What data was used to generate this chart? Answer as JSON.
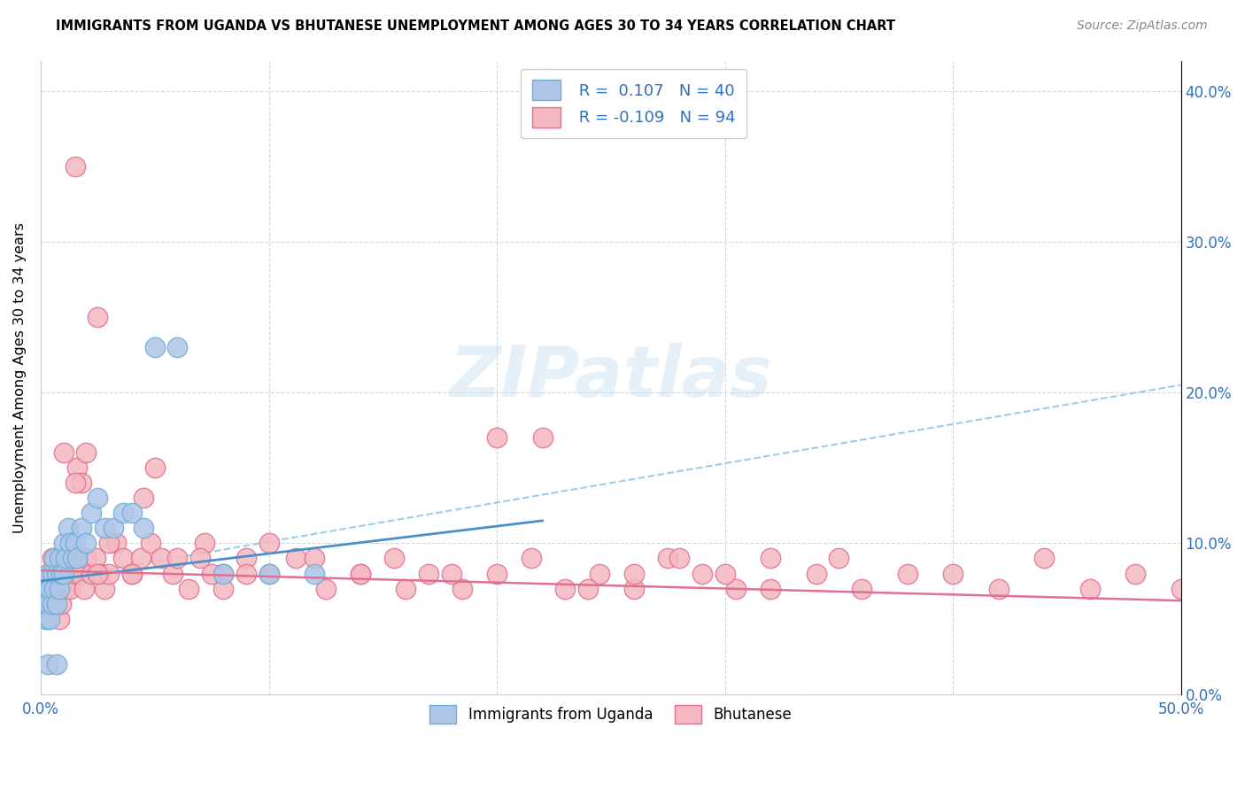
{
  "title": "IMMIGRANTS FROM UGANDA VS BHUTANESE UNEMPLOYMENT AMONG AGES 30 TO 34 YEARS CORRELATION CHART",
  "source": "Source: ZipAtlas.com",
  "ylabel": "Unemployment Among Ages 30 to 34 years",
  "xlim": [
    0.0,
    0.5
  ],
  "ylim": [
    0.0,
    0.42
  ],
  "uganda_color": "#aec6e8",
  "bhutan_color": "#f4b8c1",
  "uganda_edge_color": "#6baed6",
  "bhutan_edge_color": "#e07090",
  "uganda_R": 0.107,
  "uganda_N": 40,
  "bhutan_R": -0.109,
  "bhutan_N": 94,
  "legend_color": "#3070b8",
  "trendline_uganda_color": "#4a90c8",
  "trendline_bhutan_color": "#e07090",
  "trendline_dash_color": "#90c8e8",
  "watermark": "ZIPatlas",
  "uganda_x": [
    0.001,
    0.002,
    0.002,
    0.003,
    0.003,
    0.004,
    0.004,
    0.005,
    0.005,
    0.006,
    0.006,
    0.007,
    0.007,
    0.008,
    0.008,
    0.009,
    0.01,
    0.01,
    0.011,
    0.012,
    0.013,
    0.014,
    0.015,
    0.016,
    0.018,
    0.02,
    0.022,
    0.025,
    0.028,
    0.032,
    0.036,
    0.04,
    0.045,
    0.05,
    0.06,
    0.08,
    0.1,
    0.12,
    0.003,
    0.007
  ],
  "uganda_y": [
    0.07,
    0.06,
    0.05,
    0.08,
    0.06,
    0.07,
    0.05,
    0.08,
    0.06,
    0.09,
    0.07,
    0.08,
    0.06,
    0.09,
    0.07,
    0.08,
    0.1,
    0.08,
    0.09,
    0.11,
    0.1,
    0.09,
    0.1,
    0.09,
    0.11,
    0.1,
    0.12,
    0.13,
    0.11,
    0.11,
    0.12,
    0.12,
    0.11,
    0.23,
    0.23,
    0.08,
    0.08,
    0.08,
    0.02,
    0.02
  ],
  "bhutan_x": [
    0.001,
    0.002,
    0.003,
    0.003,
    0.004,
    0.005,
    0.005,
    0.006,
    0.007,
    0.007,
    0.008,
    0.008,
    0.009,
    0.01,
    0.01,
    0.011,
    0.012,
    0.013,
    0.014,
    0.015,
    0.016,
    0.017,
    0.018,
    0.019,
    0.02,
    0.022,
    0.024,
    0.026,
    0.028,
    0.03,
    0.033,
    0.036,
    0.04,
    0.044,
    0.048,
    0.053,
    0.058,
    0.065,
    0.072,
    0.08,
    0.09,
    0.1,
    0.112,
    0.125,
    0.14,
    0.155,
    0.17,
    0.185,
    0.2,
    0.215,
    0.23,
    0.245,
    0.26,
    0.275,
    0.29,
    0.305,
    0.32,
    0.34,
    0.36,
    0.38,
    0.4,
    0.42,
    0.44,
    0.46,
    0.48,
    0.5,
    0.01,
    0.015,
    0.02,
    0.025,
    0.03,
    0.04,
    0.05,
    0.06,
    0.07,
    0.08,
    0.09,
    0.1,
    0.12,
    0.14,
    0.16,
    0.18,
    0.2,
    0.22,
    0.24,
    0.26,
    0.28,
    0.3,
    0.32,
    0.35,
    0.015,
    0.025,
    0.045,
    0.075
  ],
  "bhutan_y": [
    0.06,
    0.07,
    0.05,
    0.08,
    0.06,
    0.07,
    0.09,
    0.06,
    0.07,
    0.08,
    0.05,
    0.07,
    0.06,
    0.08,
    0.09,
    0.07,
    0.08,
    0.07,
    0.09,
    0.08,
    0.15,
    0.08,
    0.14,
    0.07,
    0.09,
    0.08,
    0.09,
    0.08,
    0.07,
    0.08,
    0.1,
    0.09,
    0.08,
    0.09,
    0.1,
    0.09,
    0.08,
    0.07,
    0.1,
    0.08,
    0.09,
    0.08,
    0.09,
    0.07,
    0.08,
    0.09,
    0.08,
    0.07,
    0.08,
    0.09,
    0.07,
    0.08,
    0.07,
    0.09,
    0.08,
    0.07,
    0.09,
    0.08,
    0.07,
    0.08,
    0.08,
    0.07,
    0.09,
    0.07,
    0.08,
    0.07,
    0.16,
    0.14,
    0.16,
    0.08,
    0.1,
    0.08,
    0.15,
    0.09,
    0.09,
    0.07,
    0.08,
    0.1,
    0.09,
    0.08,
    0.07,
    0.08,
    0.17,
    0.17,
    0.07,
    0.08,
    0.09,
    0.08,
    0.07,
    0.09,
    0.35,
    0.25,
    0.13,
    0.08
  ],
  "uganda_trend_x": [
    0.0,
    0.22
  ],
  "uganda_trend_y": [
    0.075,
    0.115
  ],
  "bhutan_trend_x": [
    0.0,
    0.5
  ],
  "bhutan_trend_y": [
    0.082,
    0.062
  ],
  "dash_trend_x": [
    0.0,
    0.5
  ],
  "dash_trend_y": [
    0.075,
    0.205
  ]
}
